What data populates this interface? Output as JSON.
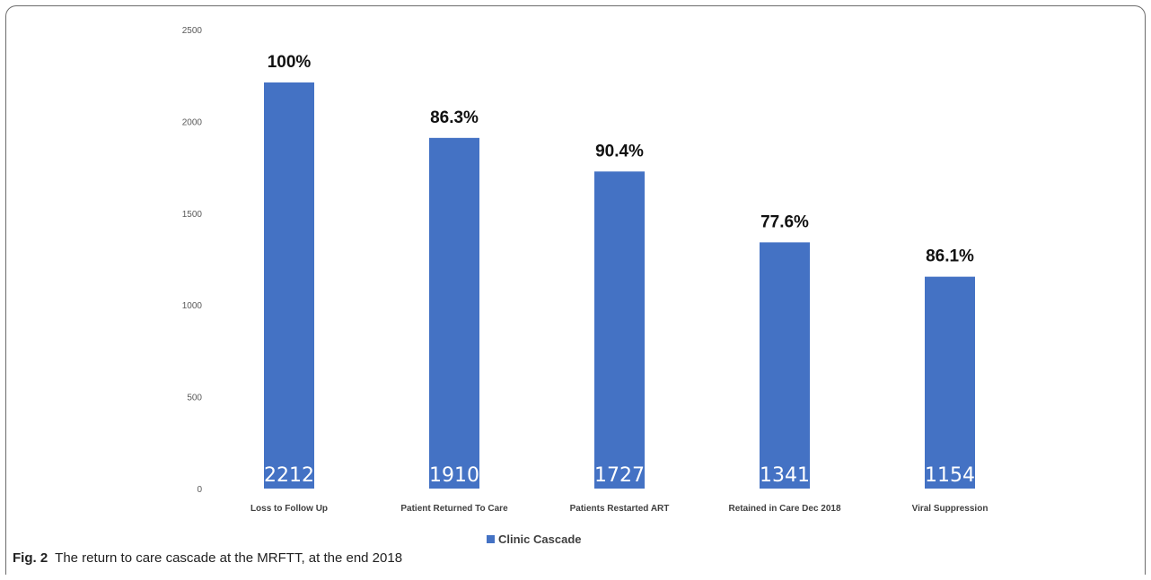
{
  "chart_data": {
    "type": "bar",
    "categories": [
      "Loss to Follow Up",
      "Patient Returned To Care",
      "Patients Restarted ART",
      "Retained in Care Dec 2018",
      "Viral Suppression"
    ],
    "series": [
      {
        "name": "Clinic Cascade",
        "values": [
          2212,
          1910,
          1727,
          1341,
          1154
        ],
        "data_labels": [
          "2212",
          "1910",
          "1727",
          "1341",
          "1154"
        ],
        "percent_labels": [
          "100%",
          "86.3%",
          "90.4%",
          "77.6%",
          "86.1%"
        ],
        "color": "#4472c4"
      }
    ],
    "y_ticks": [
      "0",
      "500",
      "1000",
      "1500",
      "2000",
      "2500"
    ],
    "ylim": [
      0,
      2500
    ],
    "grid": false,
    "legend": "bottom-center"
  },
  "caption": {
    "label": "Fig. 2",
    "text": "The return to care cascade at the MRFTT, at the end 2018"
  }
}
